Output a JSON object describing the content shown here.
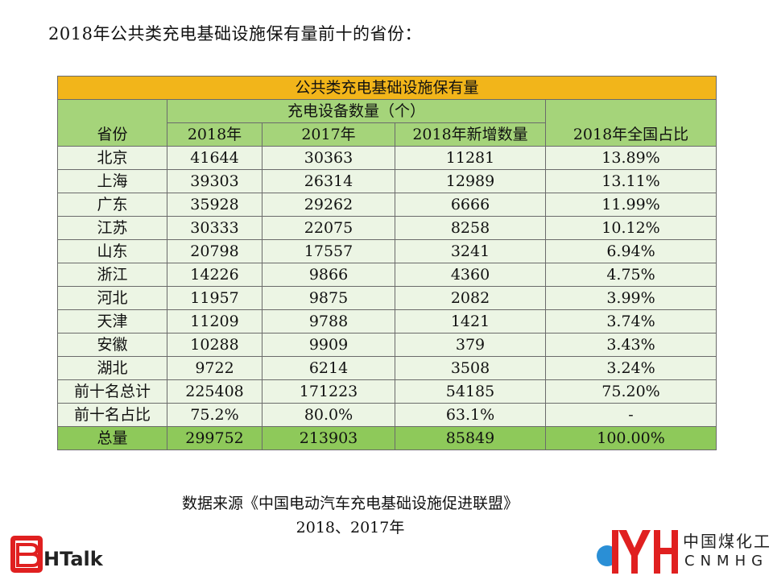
{
  "page_title": "2018年公共类充电基础设施保有量前十的省份：",
  "table": {
    "title": "公共类充电基础设施保有量",
    "province_header": "省份",
    "group_header": "充电设备数量（个）",
    "col_2018": "2018年",
    "col_2017": "2017年",
    "col_new": "2018年新增数量",
    "col_share": "2018年全国占比",
    "rows": [
      {
        "province": "北京",
        "y2018": "41644",
        "y2017": "30363",
        "added": "11281",
        "share": "13.89%"
      },
      {
        "province": "上海",
        "y2018": "39303",
        "y2017": "26314",
        "added": "12989",
        "share": "13.11%"
      },
      {
        "province": "广东",
        "y2018": "35928",
        "y2017": "29262",
        "added": "6666",
        "share": "11.99%"
      },
      {
        "province": "江苏",
        "y2018": "30333",
        "y2017": "22075",
        "added": "8258",
        "share": "10.12%"
      },
      {
        "province": "山东",
        "y2018": "20798",
        "y2017": "17557",
        "added": "3241",
        "share": "6.94%"
      },
      {
        "province": "浙江",
        "y2018": "14226",
        "y2017": "9866",
        "added": "4360",
        "share": "4.75%"
      },
      {
        "province": "河北",
        "y2018": "11957",
        "y2017": "9875",
        "added": "2082",
        "share": "3.99%"
      },
      {
        "province": "天津",
        "y2018": "11209",
        "y2017": "9788",
        "added": "1421",
        "share": "3.74%"
      },
      {
        "province": "安徽",
        "y2018": "10288",
        "y2017": "9909",
        "added": "379",
        "share": "3.43%"
      },
      {
        "province": "湖北",
        "y2018": "9722",
        "y2017": "6214",
        "added": "3508",
        "share": "3.24%"
      },
      {
        "province": "前十名总计",
        "y2018": "225408",
        "y2017": "171223",
        "added": "54185",
        "share": "75.20%"
      },
      {
        "province": "前十名占比",
        "y2018": "75.2%",
        "y2017": "80.0%",
        "added": "63.1%",
        "share": "-"
      }
    ],
    "total": {
      "province": "总量",
      "y2018": "299752",
      "y2017": "213903",
      "added": "85849",
      "share": "100.00%"
    }
  },
  "source": {
    "line1": "数据来源《中国电动汽车充电基础设施促进联盟》",
    "line2": "2018、2017年"
  },
  "logos": {
    "left_text": "BHTalk",
    "right_cn": "中国煤化工",
    "right_en": "CNMHG"
  },
  "colors": {
    "title_bar": "#f2b51a",
    "header_green": "#a5d47a",
    "body_green": "#ecf5e4",
    "total_green": "#8ec95a",
    "logo_red": "#e02020"
  }
}
